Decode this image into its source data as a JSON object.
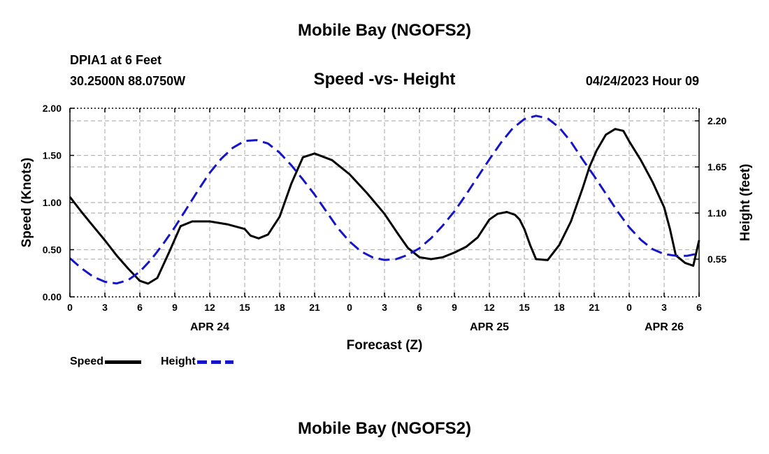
{
  "header": {
    "title": "Mobile Bay (NGOFS2)",
    "station": "DPIA1 at 6 Feet",
    "coords": "30.2500N  88.0750W",
    "subtitle": "Speed -vs- Height",
    "timestamp": "04/24/2023 Hour 09",
    "footer_title": "Mobile Bay (NGOFS2)"
  },
  "legend": {
    "speed_label": "Speed",
    "height_label": "Height"
  },
  "colors": {
    "speed": "#000000",
    "height": "#1414c8",
    "grid": "#b4b4b4"
  },
  "chart_data": {
    "type": "line",
    "xlabel": "Forecast (Z)",
    "ylabel": "Speed (Knots)",
    "y2label": "Height (feet)",
    "x_unit": "hours since 2023-04-24 00Z",
    "xlim": [
      0,
      54
    ],
    "ylim": [
      0,
      2.0
    ],
    "y2lim": [
      0.1,
      2.35
    ],
    "x_ticks": [
      0,
      3,
      6,
      9,
      12,
      15,
      18,
      21,
      24,
      27,
      30,
      33,
      36,
      39,
      42,
      45,
      48,
      51,
      54
    ],
    "x_tick_labels": [
      "0",
      "3",
      "6",
      "9",
      "12",
      "15",
      "18",
      "21",
      "0",
      "3",
      "6",
      "9",
      "12",
      "15",
      "18",
      "21",
      "0",
      "3",
      "6"
    ],
    "y_ticks": [
      0.0,
      0.5,
      1.0,
      1.5,
      2.0
    ],
    "y_tick_labels": [
      "0.00",
      "0.50",
      "1.00",
      "1.50",
      "2.00"
    ],
    "y2_ticks": [
      0.55,
      1.1,
      1.65,
      2.2
    ],
    "y2_tick_labels": [
      "0.55",
      "1.10",
      "1.65",
      "2.20"
    ],
    "date_labels": [
      {
        "x": 12,
        "label": "APR 24"
      },
      {
        "x": 36,
        "label": "APR 25"
      },
      {
        "x": 51,
        "label": "APR 26"
      }
    ],
    "grid": true,
    "legend_position": "bottom-left",
    "series": [
      {
        "name": "Speed",
        "axis": "left",
        "style": "solid",
        "x": [
          0,
          1,
          2,
          3,
          4,
          5,
          6,
          6.7,
          7.5,
          8.5,
          9.5,
          10.5,
          12,
          13.5,
          15,
          15.5,
          16.2,
          17,
          18,
          19,
          20,
          21,
          22.5,
          24,
          25.5,
          27,
          27.6,
          28.2,
          29,
          30,
          31,
          32,
          33,
          34,
          35,
          36,
          36.7,
          37.5,
          38.2,
          38.6,
          39,
          39.5,
          40,
          41,
          42,
          43,
          44,
          44.6,
          45.2,
          46,
          46.8,
          47.5,
          48,
          49,
          50,
          51,
          51.5,
          52,
          52.8,
          53.5,
          54
        ],
        "values": [
          1.06,
          0.9,
          0.75,
          0.6,
          0.44,
          0.3,
          0.17,
          0.14,
          0.2,
          0.47,
          0.75,
          0.8,
          0.8,
          0.77,
          0.72,
          0.65,
          0.62,
          0.66,
          0.85,
          1.2,
          1.48,
          1.52,
          1.45,
          1.3,
          1.1,
          0.88,
          0.77,
          0.66,
          0.52,
          0.42,
          0.4,
          0.42,
          0.47,
          0.53,
          0.63,
          0.82,
          0.88,
          0.9,
          0.87,
          0.82,
          0.72,
          0.55,
          0.4,
          0.39,
          0.55,
          0.8,
          1.15,
          1.38,
          1.55,
          1.72,
          1.78,
          1.76,
          1.65,
          1.45,
          1.22,
          0.95,
          0.72,
          0.44,
          0.36,
          0.33,
          0.6
        ]
      },
      {
        "name": "Height",
        "axis": "right",
        "style": "dashed",
        "x": [
          0,
          1,
          2,
          3,
          4,
          5,
          6,
          7,
          8,
          9,
          10,
          11,
          12,
          13,
          14,
          15,
          16,
          17,
          18,
          19,
          20,
          21,
          22,
          23,
          24,
          25,
          26,
          27,
          28,
          29,
          30,
          31,
          32,
          33,
          34,
          35,
          36,
          37,
          38,
          39,
          40,
          41,
          42,
          43,
          44,
          45,
          46,
          47,
          48,
          49,
          50,
          51,
          52,
          53,
          54
        ],
        "values": [
          0.56,
          0.44,
          0.34,
          0.28,
          0.26,
          0.3,
          0.4,
          0.55,
          0.73,
          0.93,
          1.15,
          1.37,
          1.58,
          1.75,
          1.88,
          1.96,
          1.97,
          1.93,
          1.82,
          1.67,
          1.5,
          1.32,
          1.12,
          0.92,
          0.76,
          0.64,
          0.57,
          0.54,
          0.55,
          0.6,
          0.68,
          0.8,
          0.95,
          1.12,
          1.32,
          1.53,
          1.74,
          1.94,
          2.11,
          2.22,
          2.26,
          2.23,
          2.12,
          1.95,
          1.74,
          1.54,
          1.33,
          1.12,
          0.93,
          0.78,
          0.67,
          0.61,
          0.59,
          0.59,
          0.62
        ]
      }
    ]
  }
}
